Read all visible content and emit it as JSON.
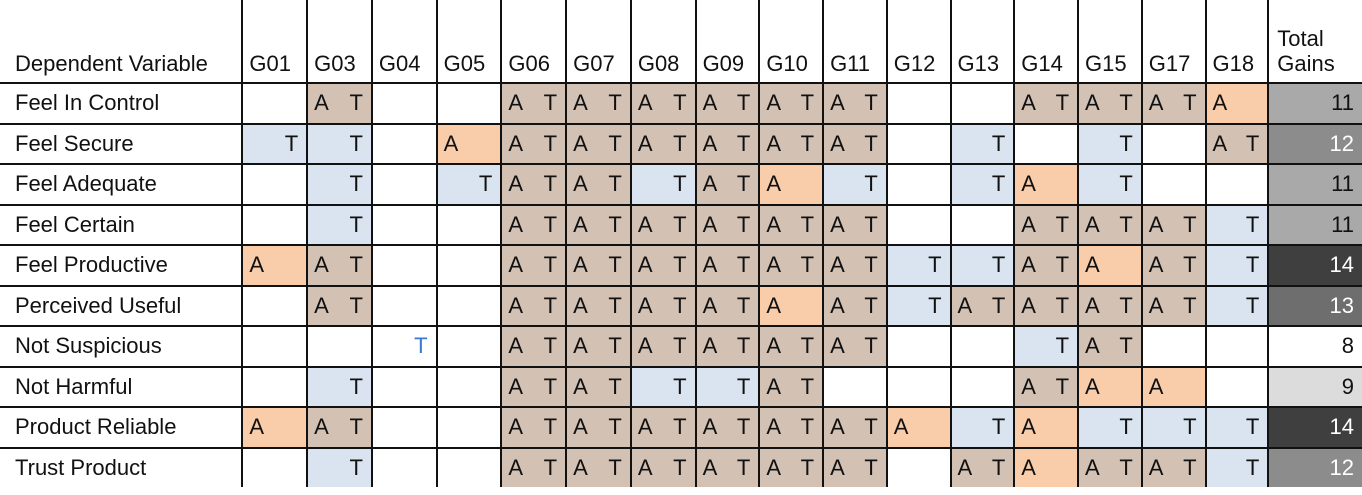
{
  "header": {
    "dependent_variable": "Dependent Variable",
    "groups": [
      "G01",
      "G03",
      "G04",
      "G05",
      "G06",
      "G07",
      "G08",
      "G09",
      "G10",
      "G11",
      "G12",
      "G13",
      "G14",
      "G15",
      "G17",
      "G18"
    ],
    "total_line1": "Total",
    "total_line2": "Gains"
  },
  "colors": {
    "both_a_and_t": "#d3c1b4",
    "a_only": "#f9ccaa",
    "t_only": "#d9e4f0",
    "highlight_t_text": "#3a78d6"
  },
  "rows": [
    {
      "label": "Feel In Control",
      "cells": [
        "",
        "AT",
        "",
        "",
        "AT",
        "AT",
        "AT",
        "AT",
        "AT",
        "AT",
        "",
        "",
        "AT",
        "AT",
        "AT",
        "A"
      ],
      "total": "11",
      "total_bg": "#a9a9a9",
      "total_fg": "#111111"
    },
    {
      "label": "Feel Secure",
      "cells": [
        "T",
        "T",
        "",
        "A",
        "AT",
        "AT",
        "AT",
        "AT",
        "AT",
        "AT",
        "",
        "T",
        "",
        "T",
        "",
        "AT"
      ],
      "total": "12",
      "total_bg": "#8c8c8c",
      "total_fg": "#ffffff"
    },
    {
      "label": "Feel Adequate",
      "cells": [
        "",
        "T",
        "",
        "T",
        "AT",
        "AT",
        "T",
        "AT",
        "A",
        "T",
        "",
        "T",
        "A",
        "T",
        "",
        ""
      ],
      "total": "11",
      "total_bg": "#a9a9a9",
      "total_fg": "#111111"
    },
    {
      "label": "Feel Certain",
      "cells": [
        "",
        "T",
        "",
        "",
        "AT",
        "AT",
        "AT",
        "AT",
        "AT",
        "AT",
        "",
        "",
        "AT",
        "AT",
        "AT",
        "T"
      ],
      "total": "11",
      "total_bg": "#a9a9a9",
      "total_fg": "#111111"
    },
    {
      "label": "Feel Productive",
      "cells": [
        "A",
        "AT",
        "",
        "",
        "AT",
        "AT",
        "AT",
        "AT",
        "AT",
        "AT",
        "T",
        "T",
        "AT",
        "A",
        "AT",
        "T"
      ],
      "total": "14",
      "total_bg": "#3f3f3f",
      "total_fg": "#ffffff"
    },
    {
      "label": "Perceived Useful",
      "cells": [
        "",
        "AT",
        "",
        "",
        "AT",
        "AT",
        "AT",
        "AT",
        "A",
        "AT",
        "T",
        "AT",
        "AT",
        "AT",
        "AT",
        "T"
      ],
      "total": "13",
      "total_bg": "#6e6e6e",
      "total_fg": "#ffffff"
    },
    {
      "label": "Not Suspicious",
      "cells": [
        "",
        "",
        "T*",
        "",
        "AT",
        "AT",
        "AT",
        "AT",
        "AT",
        "AT",
        "",
        "",
        "T",
        "AT",
        "",
        ""
      ],
      "total": "8",
      "total_bg": "#ffffff",
      "total_fg": "#111111"
    },
    {
      "label": "Not Harmful",
      "cells": [
        "",
        "T",
        "",
        "",
        "AT",
        "AT",
        "T",
        "T",
        "AT",
        "",
        "",
        "",
        "AT",
        "A",
        "A",
        ""
      ],
      "total": "9",
      "total_bg": "#dcdcdc",
      "total_fg": "#111111"
    },
    {
      "label": "Product Reliable",
      "cells": [
        "A",
        "AT",
        "",
        "",
        "AT",
        "AT",
        "AT",
        "AT",
        "AT",
        "AT",
        "A",
        "T",
        "A",
        "T",
        "T",
        "T"
      ],
      "total": "14",
      "total_bg": "#3f3f3f",
      "total_fg": "#ffffff"
    },
    {
      "label": "Trust Product",
      "cells": [
        "",
        "T",
        "",
        "",
        "AT",
        "AT",
        "AT",
        "AT",
        "AT",
        "AT",
        "",
        "AT",
        "A",
        "AT",
        "AT",
        "T"
      ],
      "total": "12",
      "total_bg": "#8c8c8c",
      "total_fg": "#ffffff"
    }
  ]
}
